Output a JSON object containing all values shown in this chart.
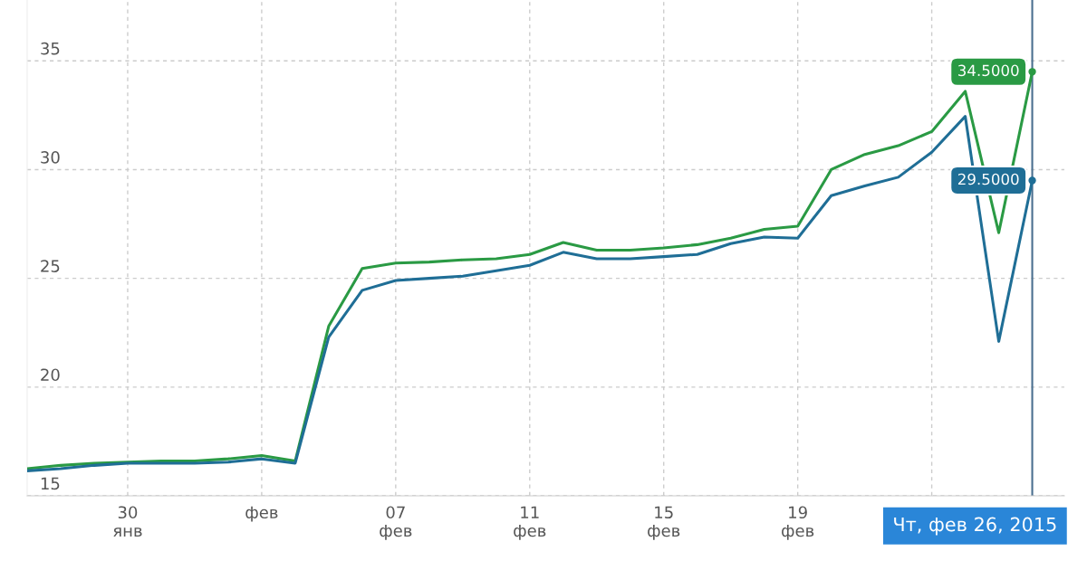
{
  "chart_data": {
    "type": "line",
    "x": [
      "2015-01-27",
      "2015-01-28",
      "2015-01-29",
      "2015-01-30",
      "2015-01-31",
      "2015-02-01",
      "2015-02-02",
      "2015-02-03",
      "2015-02-04",
      "2015-02-05",
      "2015-02-06",
      "2015-02-07",
      "2015-02-08",
      "2015-02-09",
      "2015-02-10",
      "2015-02-11",
      "2015-02-12",
      "2015-02-13",
      "2015-02-14",
      "2015-02-15",
      "2015-02-16",
      "2015-02-17",
      "2015-02-18",
      "2015-02-19",
      "2015-02-20",
      "2015-02-21",
      "2015-02-22",
      "2015-02-23",
      "2015-02-24",
      "2015-02-25",
      "2015-02-26"
    ],
    "series": [
      {
        "color": "#2a9a44",
        "values": [
          16.25,
          16.4,
          16.5,
          16.55,
          16.6,
          16.6,
          16.7,
          16.85,
          16.6,
          22.8,
          25.45,
          25.7,
          25.75,
          25.85,
          25.9,
          26.1,
          26.65,
          26.3,
          26.3,
          26.4,
          26.55,
          26.85,
          27.25,
          27.4,
          30.0,
          30.7,
          31.1,
          31.75,
          33.6,
          27.1,
          34.5
        ],
        "value_labels": [
          null,
          null,
          null,
          null,
          null,
          null,
          null,
          null,
          null,
          null,
          null,
          null,
          null,
          null,
          null,
          null,
          null,
          null,
          null,
          null,
          null,
          null,
          null,
          null,
          null,
          null,
          null,
          null,
          null,
          null,
          "34.5000"
        ]
      },
      {
        "color": "#1f6e96",
        "values": [
          16.15,
          16.25,
          16.4,
          16.5,
          16.5,
          16.5,
          16.55,
          16.7,
          16.5,
          22.3,
          24.45,
          24.9,
          25.0,
          25.1,
          25.35,
          25.6,
          26.2,
          25.9,
          25.9,
          26.0,
          26.1,
          26.6,
          26.9,
          26.85,
          28.8,
          29.25,
          29.65,
          30.8,
          32.45,
          22.1,
          29.5
        ],
        "value_labels": [
          null,
          null,
          null,
          null,
          null,
          null,
          null,
          null,
          null,
          null,
          null,
          null,
          null,
          null,
          null,
          null,
          null,
          null,
          null,
          null,
          null,
          null,
          null,
          null,
          null,
          null,
          null,
          null,
          null,
          null,
          "29.5000"
        ]
      }
    ],
    "xlim": [
      "2015-01-27",
      "2015-02-26T23:00"
    ],
    "xticks": [
      {
        "value": "2015-01-30",
        "label": "30\nянв"
      },
      {
        "value": "2015-02-03",
        "label": "фев"
      },
      {
        "value": "2015-02-07",
        "label": "07\nфев"
      },
      {
        "value": "2015-02-11",
        "label": "11\nфев"
      },
      {
        "value": "2015-02-15",
        "label": "15\nфев"
      },
      {
        "value": "2015-02-19",
        "label": "19\nфев"
      },
      {
        "value": "2015-02-23",
        "label": null
      }
    ],
    "ylim": [
      15,
      37.8
    ],
    "yticks": [
      15,
      20,
      25,
      30,
      35
    ],
    "grid": true,
    "line_style": "solid",
    "ref_lines": [
      {
        "axis": "x",
        "value": "2015-02-26",
        "label": "Чт, фев 26, 2015",
        "color": "#4a6f8f"
      }
    ]
  }
}
